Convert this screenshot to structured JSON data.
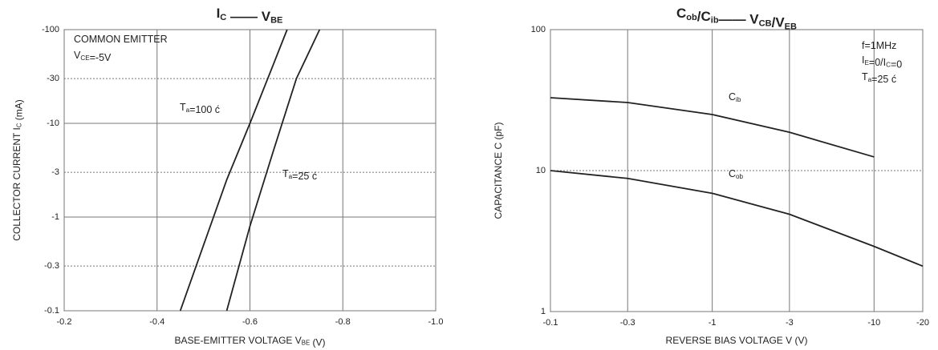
{
  "chart_data": [
    {
      "type": "line",
      "title": [
        "I",
        {
          "sub": "C"
        },
        " —— V",
        {
          "sub": "BE"
        }
      ],
      "x_label": [
        "BASE-EMITTER VOLTAGE V",
        {
          "sub": "BE"
        },
        " (V)"
      ],
      "y_label": [
        "COLLECTOR CURRENT  I",
        {
          "sub": "C"
        },
        "  (mA)"
      ],
      "annotations": [
        "COMMON EMITTER",
        [
          "V",
          {
            "sub": "CE"
          },
          "=-5V"
        ]
      ],
      "xlim": [
        -0.2,
        -1.0
      ],
      "xticks": [
        -0.2,
        -0.4,
        -0.6,
        -0.8,
        {
          "value": -1,
          "label": "-1.0"
        }
      ],
      "ylim": [
        -0.1,
        -100
      ],
      "yticks": [
        -0.1,
        -0.3,
        -1,
        -3,
        -10,
        -30,
        -100
      ],
      "y_log": true,
      "x_log": false,
      "grid": true,
      "series": [
        {
          "name": [
            "T",
            {
              "sub": "a"
            },
            "=100 ć"
          ],
          "color": "#222",
          "x": [
            -0.45,
            -0.5,
            -0.55,
            -0.6,
            -0.65,
            -0.68
          ],
          "values": [
            -0.1,
            -0.5,
            -2.5,
            -10,
            -42,
            -100
          ]
        },
        {
          "name": [
            "T",
            {
              "sub": "a"
            },
            "=25 ć"
          ],
          "color": "#222",
          "x": [
            -0.55,
            -0.6,
            -0.65,
            -0.7,
            -0.75
          ],
          "values": [
            -0.1,
            -0.8,
            -5,
            -30,
            -100
          ]
        }
      ]
    },
    {
      "type": "line",
      "title": [
        "C",
        {
          "sub": "ob"
        },
        "/C",
        {
          "sub": "ib"
        },
        "—— V",
        {
          "sub": "CB"
        },
        "/V",
        {
          "sub": "EB"
        }
      ],
      "x_label": "REVERSE BIAS VOLTAGE   V   (V)",
      "y_label": "CAPACITANCE C     (pF)",
      "annotations": [
        "f=1MHz",
        [
          "I",
          {
            "sub": "E"
          },
          "=0/I",
          {
            "sub": "C"
          },
          "=0"
        ],
        [
          "T",
          {
            "sub": "a"
          },
          "=25 ć"
        ]
      ],
      "xlim": [
        -0.1,
        -20
      ],
      "xticks": [
        -0.1,
        -0.3,
        -1,
        -3,
        -10,
        -20
      ],
      "ylim": [
        1,
        100
      ],
      "yticks": [
        1,
        10,
        100
      ],
      "y_log": true,
      "x_log": true,
      "grid": true,
      "series": [
        {
          "name": [
            "C",
            {
              "sub": "ib"
            }
          ],
          "color": "#222",
          "x": [
            -0.1,
            -0.3,
            -1,
            -3,
            -10
          ],
          "values": [
            32.9,
            30.4,
            25,
            18.7,
            12.5
          ]
        },
        {
          "name": [
            "C",
            {
              "sub": "ob"
            }
          ],
          "color": "#222",
          "x": [
            -0.1,
            -0.3,
            -1,
            -3,
            -10,
            -20
          ],
          "values": [
            10,
            8.8,
            6.9,
            4.9,
            2.9,
            2.1
          ]
        }
      ]
    }
  ]
}
